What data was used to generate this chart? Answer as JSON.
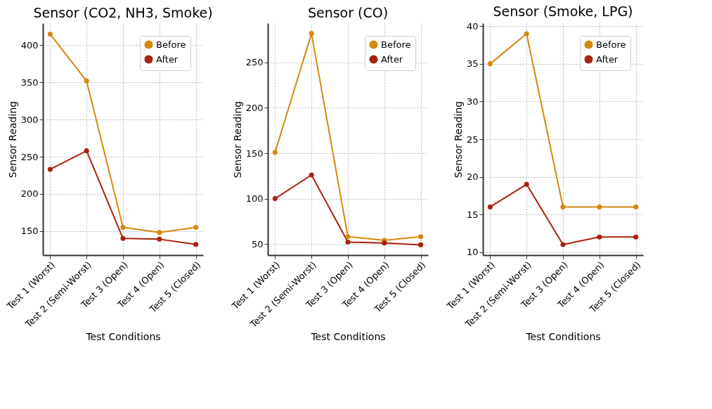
{
  "chart_data": [
    {
      "type": "line",
      "title": "Sensor (CO2, NH3, Smoke)",
      "xlabel": "Test Conditions",
      "ylabel": "Sensor Reading",
      "categories": [
        "Test 1 (Worst)",
        "Test 2 (Semi-Worst)",
        "Test 3 (Open)",
        "Test 4 (Open)",
        "Test 5 (Closed)"
      ],
      "series": [
        {
          "name": "Before",
          "color": "#d4880c",
          "values": [
            415,
            352,
            155,
            148,
            155
          ]
        },
        {
          "name": "After",
          "color": "#a8220e",
          "values": [
            233,
            258,
            140,
            139,
            132
          ]
        }
      ],
      "ylim": [
        117.6,
        429.7
      ],
      "yticks": [
        150,
        200,
        250,
        300,
        350,
        400
      ],
      "grid": true,
      "legend": "top right",
      "marker": "circle",
      "line_style": "solid"
    },
    {
      "type": "line",
      "title": "Sensor (CO)",
      "xlabel": "Test Conditions",
      "ylabel": "Sensor Reading",
      "categories": [
        "Test 1 (Worst)",
        "Test 2 (Semi-Worst)",
        "Test 3 (Open)",
        "Test 4 (Open)",
        "Test 5 (Closed)"
      ],
      "series": [
        {
          "name": "Before",
          "color": "#d4880c",
          "values": [
            151,
            282,
            58,
            54,
            58
          ]
        },
        {
          "name": "After",
          "color": "#a8220e",
          "values": [
            100,
            126,
            52,
            51,
            49
          ]
        }
      ],
      "ylim": [
        37.7,
        293.3
      ],
      "yticks": [
        50,
        100,
        150,
        200,
        250
      ],
      "grid": true,
      "legend": "top right",
      "marker": "circle",
      "line_style": "solid"
    },
    {
      "type": "line",
      "title": "Sensor (Smoke, LPG)",
      "xlabel": "Test Conditions",
      "ylabel": "Sensor Reading",
      "categories": [
        "Test 1 (Worst)",
        "Test 2 (Semi-Worst)",
        "Test 3 (Open)",
        "Test 4 (Open)",
        "Test 5 (Closed)"
      ],
      "series": [
        {
          "name": "Before",
          "color": "#d4880c",
          "values": [
            35,
            39,
            16,
            16,
            16
          ]
        },
        {
          "name": "After",
          "color": "#a8220e",
          "values": [
            16,
            19,
            11,
            12,
            12
          ]
        }
      ],
      "ylim": [
        9.6,
        40.4
      ],
      "yticks": [
        10,
        15,
        20,
        25,
        30,
        35,
        40
      ],
      "grid": true,
      "legend": "top right",
      "marker": "circle",
      "line_style": "solid"
    }
  ]
}
